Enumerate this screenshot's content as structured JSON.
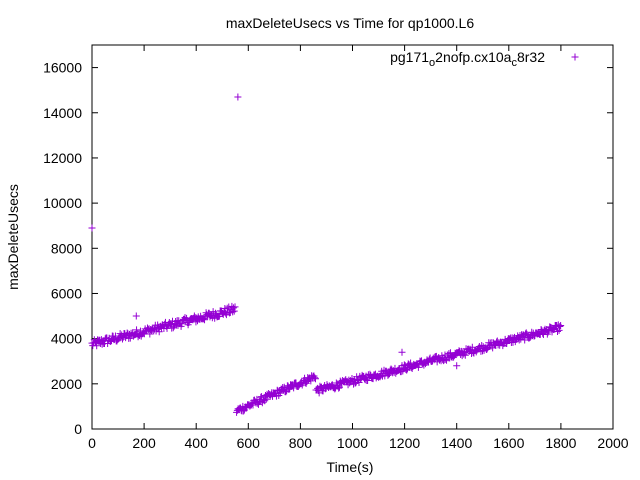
{
  "chart_data": {
    "type": "scatter",
    "title": "maxDeleteUsecs vs Time for qp1000.L6",
    "xlabel": "Time(s)",
    "ylabel": "maxDeleteUsecs",
    "xlim": [
      0,
      2000
    ],
    "ylim": [
      0,
      17000
    ],
    "xticks": [
      0,
      200,
      400,
      600,
      800,
      1000,
      1200,
      1400,
      1600,
      1800,
      2000
    ],
    "yticks": [
      0,
      2000,
      4000,
      6000,
      8000,
      10000,
      12000,
      14000,
      16000
    ],
    "grid": false,
    "legend_position": "top-right",
    "marker": "+",
    "series": [
      {
        "name_parts": [
          "pg171",
          "o",
          "2nofp.cx10a",
          "c",
          "8r32"
        ],
        "color": "#9400d3",
        "segments": [
          {
            "x_start": 0,
            "x_end": 550,
            "step": 3,
            "y_start": 3750,
            "y_end": 5300,
            "spread": 350
          },
          {
            "x_start": 555,
            "x_end": 860,
            "step": 3,
            "y_start": 800,
            "y_end": 2350,
            "spread": 300
          },
          {
            "x_start": 860,
            "x_end": 1800,
            "step": 3,
            "y_start": 1700,
            "y_end": 4500,
            "spread": 300
          }
        ],
        "outliers": [
          {
            "x": 0,
            "y": 8900
          },
          {
            "x": 560,
            "y": 14700
          },
          {
            "x": 170,
            "y": 5000
          },
          {
            "x": 1190,
            "y": 3400
          },
          {
            "x": 1400,
            "y": 2800
          }
        ]
      }
    ]
  }
}
